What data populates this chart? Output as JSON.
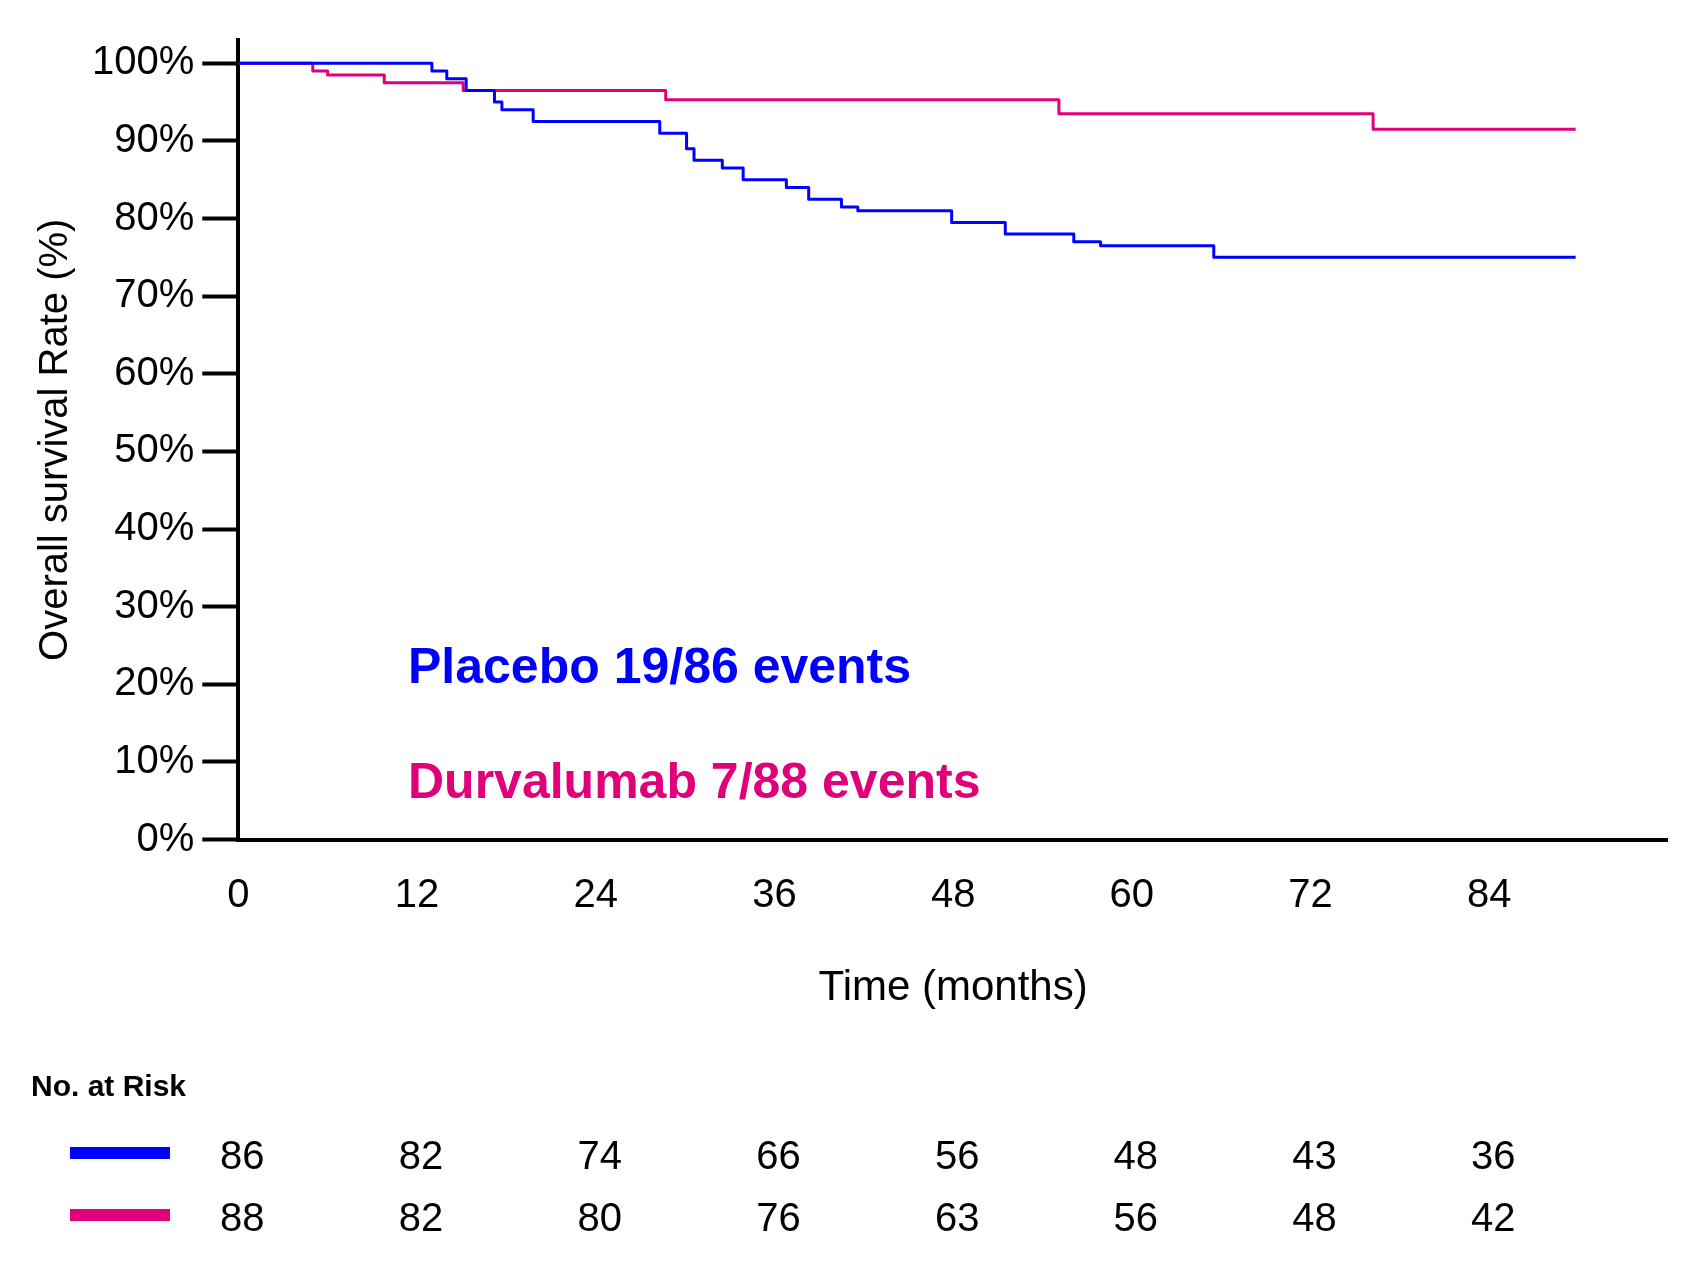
{
  "chart_data": {
    "type": "step",
    "xlabel": "Time (months)",
    "ylabel": "Overall survival Rate (%)",
    "xlim": [
      0,
      96
    ],
    "ylim": [
      0,
      103
    ],
    "xticks": [
      0,
      12,
      24,
      36,
      48,
      60,
      72,
      84
    ],
    "yticks": [
      {
        "value": 0,
        "label": "0%"
      },
      {
        "value": 10,
        "label": "10%"
      },
      {
        "value": 20,
        "label": "20%"
      },
      {
        "value": 30,
        "label": "30%"
      },
      {
        "value": 40,
        "label": "40%"
      },
      {
        "value": 50,
        "label": "50%"
      },
      {
        "value": 60,
        "label": "60%"
      },
      {
        "value": 70,
        "label": "70%"
      },
      {
        "value": 80,
        "label": "80%"
      },
      {
        "value": 90,
        "label": "90%"
      },
      {
        "value": 100,
        "label": "100%"
      }
    ],
    "grid": false,
    "legend": false,
    "marker": "none",
    "line_style": "solid",
    "series": [
      {
        "color": "#0000ff",
        "x": [
          0,
          13,
          14,
          15.3,
          17.2,
          17.7,
          19.8,
          28.3,
          30.1,
          30.6,
          32.5,
          33.9,
          36.8,
          38.3,
          40.5,
          41.6,
          47.9,
          51.5,
          56.1,
          57.9,
          65.5,
          89.8
        ],
        "values": [
          100,
          99,
          98,
          96.5,
          95,
          94,
          92.5,
          91,
          89,
          87.5,
          86.5,
          85,
          84,
          82.5,
          81.5,
          81,
          79.5,
          78,
          77,
          76.5,
          75,
          75
        ]
      },
      {
        "color": "#e0007a",
        "x": [
          0,
          5,
          6,
          9.8,
          15.1,
          28.7,
          55.1,
          76.2,
          89.8
        ],
        "values": [
          100,
          99,
          98.5,
          97.5,
          96.5,
          95.3,
          93.5,
          91.5,
          91.5
        ]
      }
    ],
    "annotations": [
      "Placebo 19/86 events",
      "Durvalumab 7/88 events",
      "No. at Risk",
      "86",
      "82",
      "74",
      "66",
      "56",
      "48",
      "43",
      "36",
      "88",
      "82",
      "80",
      "76",
      "63",
      "56",
      "48",
      "42"
    ]
  }
}
